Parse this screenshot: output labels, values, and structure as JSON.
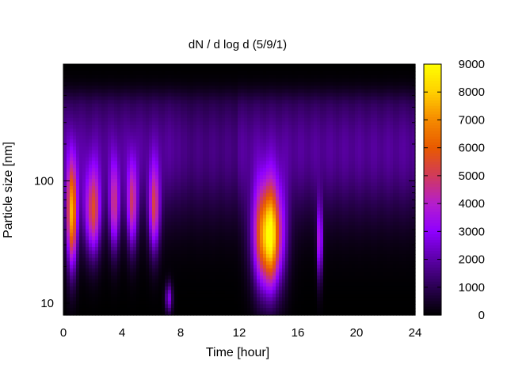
{
  "chart_data": {
    "type": "heatmap",
    "title": "dN / d log d (5/9/1)",
    "xlabel": "Time [hour]",
    "ylabel": "Particle size [nm]",
    "xlim": [
      0,
      24
    ],
    "ylim": [
      8,
      900
    ],
    "y_scale": "log",
    "x_ticks": [
      "0",
      "4",
      "8",
      "12",
      "16",
      "20",
      "24"
    ],
    "y_ticks": [
      "10",
      "100"
    ],
    "colorbar": {
      "min": 0,
      "max": 9000,
      "ticks": [
        "0",
        "1000",
        "2000",
        "3000",
        "4000",
        "5000",
        "6000",
        "7000",
        "8000",
        "9000"
      ],
      "palette": [
        "#000000",
        "#2a0052",
        "#5c00a8",
        "#8f00ff",
        "#b51ecc",
        "#d13a5a",
        "#e85a00",
        "#f58a00",
        "#ffd000",
        "#ffff00"
      ]
    },
    "background_level": 1800,
    "features": [
      {
        "t": 0.6,
        "size": 52,
        "peak": 7200,
        "t_width": 0.35,
        "size_width": 0.42
      },
      {
        "t": 2.0,
        "size": 55,
        "peak": 4700,
        "t_width": 0.55,
        "size_width": 0.35
      },
      {
        "t": 3.5,
        "size": 60,
        "peak": 3900,
        "t_width": 0.35,
        "size_width": 0.35
      },
      {
        "t": 4.7,
        "size": 62,
        "peak": 4300,
        "t_width": 0.35,
        "size_width": 0.35
      },
      {
        "t": 6.2,
        "size": 58,
        "peak": 4100,
        "t_width": 0.4,
        "size_width": 0.35
      },
      {
        "t": 7.2,
        "size": 11,
        "peak": 2600,
        "t_width": 0.25,
        "size_width": 0.12
      },
      {
        "t": 14.0,
        "size": 35,
        "peak": 8800,
        "t_width": 0.95,
        "size_width": 0.42
      },
      {
        "t": 17.5,
        "size": 32,
        "peak": 4200,
        "t_width": 0.18,
        "size_width": 0.3
      }
    ]
  }
}
